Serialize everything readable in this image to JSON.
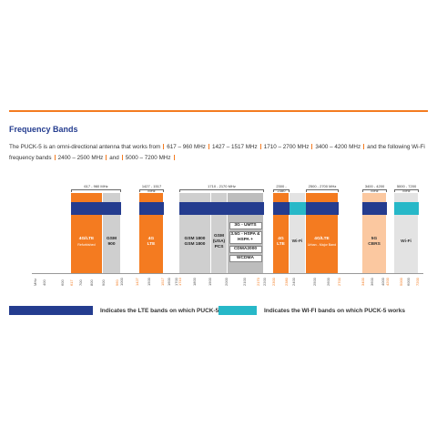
{
  "title": "Frequency Bands",
  "intro": {
    "text": "The PUCK-5 is an omni-directional antenna that works from",
    "ranges": [
      "617 – 960 MHz",
      "1427 – 1517 MHz",
      "1710 – 2700 MHz",
      "3400 – 4200 MHz"
    ],
    "middle": "and the following Wi-Fi frequency bands",
    "wifi_ranges": [
      "2400 – 2500 MHz",
      "and",
      "5000 – 7200 MHz"
    ]
  },
  "bands": [
    {
      "range_label": "617 - 960 MHz",
      "blocks": [
        {
          "kind": "lte",
          "lines": [
            "4G/LTE",
            "Refurbished"
          ]
        },
        {
          "kind": "gsm",
          "lines": [
            "GSM",
            "900"
          ]
        }
      ]
    },
    {
      "range_label": "1427 - 1517 MHz",
      "blocks": [
        {
          "kind": "lte",
          "lines": [
            "4G",
            "LTE"
          ]
        }
      ]
    },
    {
      "range_label": "1710 - 2170 MHz",
      "blocks": [
        {
          "kind": "gsm",
          "lines": [
            "GSM 1800",
            "GSM 1800"
          ]
        },
        {
          "kind": "gsm",
          "lines": [
            "GSM",
            "(USA)",
            "PCS"
          ]
        },
        {
          "kind": "3g",
          "lines": [
            "3G - UMTS",
            "3.5G - HSPA & HSPA +",
            "CDMA2000",
            "WCDMA"
          ]
        }
      ]
    },
    {
      "range_label": "2300 - 2380 MHz",
      "blocks": [
        {
          "kind": "lte",
          "lines": [
            "4G",
            "LTE"
          ]
        }
      ]
    },
    {
      "blocks": [
        {
          "kind": "wifi",
          "lines": [
            "Wi-Fi"
          ]
        }
      ]
    },
    {
      "range_label": "2500 - 2700 MHz",
      "blocks": [
        {
          "kind": "lte",
          "lines": [
            "4G/LTE",
            "Urban - Major Band"
          ]
        }
      ]
    },
    {
      "range_label": "3400 - 4200 MHz",
      "blocks": [
        {
          "kind": "5g",
          "lines": [
            "5G",
            "CBRS"
          ]
        }
      ]
    },
    {
      "range_label": "5000 - 7200 MHz",
      "blocks": [
        {
          "kind": "wifi",
          "lines": [
            "Wi-Fi"
          ]
        }
      ]
    }
  ],
  "axis": {
    "ticks": [
      {
        "label": "MHz"
      },
      {
        "label": "400"
      },
      {
        "label": "600"
      },
      {
        "label": "617",
        "highlight": true
      },
      {
        "label": "700"
      },
      {
        "label": "800"
      },
      {
        "label": "900"
      },
      {
        "label": "960",
        "highlight": true
      },
      {
        "label": "1000"
      },
      {
        "label": "1427",
        "highlight": true
      },
      {
        "label": "1500"
      },
      {
        "label": "1517",
        "highlight": true
      },
      {
        "label": "1600"
      },
      {
        "label": "1700"
      },
      {
        "label": "1710",
        "highlight": true
      },
      {
        "label": "1800"
      },
      {
        "label": "1900"
      },
      {
        "label": "2000"
      },
      {
        "label": "2100"
      },
      {
        "label": "2170",
        "highlight": true
      },
      {
        "label": "2200"
      },
      {
        "label": "2300",
        "highlight": true
      },
      {
        "label": "2380",
        "highlight": true
      },
      {
        "label": "2400"
      },
      {
        "label": "2500"
      },
      {
        "label": "2600"
      },
      {
        "label": "2700",
        "highlight": true
      },
      {
        "label": "3400",
        "highlight": true
      },
      {
        "label": "3600"
      },
      {
        "label": "4000"
      },
      {
        "label": "4200",
        "highlight": true
      },
      {
        "label": "5000",
        "highlight": true
      },
      {
        "label": "6000"
      },
      {
        "label": "7200",
        "highlight": true
      }
    ]
  },
  "legend": [
    {
      "kind": "lte",
      "label": "Indicates the LTE bands on which PUCK-5 works"
    },
    {
      "kind": "wifi",
      "label": "Indicates the WI-FI bands on which PUCK-5 works"
    }
  ]
}
